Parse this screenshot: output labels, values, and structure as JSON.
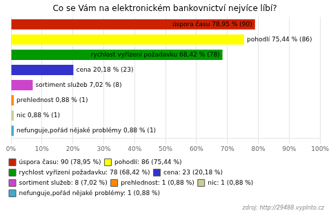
{
  "chart_data": {
    "type": "bar",
    "orientation": "horizontal",
    "title": "Co se Vám na elektronickém bankovnictví nejvíce líbí?",
    "categories": [
      "úspora času 78,95 % (90)",
      "pohodlí 75,44 % (86)",
      "rychlost vyřízení požadavku 68,42 % (78)",
      "cena 20,18 % (23)",
      "sortiment služeb 7,02 % (8)",
      "prehlednost 0,88 % (1)",
      "nic 0,88 % (1)",
      "nefunguje,pořád nějaké problémy 0,88 % (1)"
    ],
    "values": [
      78.95,
      75.44,
      68.42,
      20.18,
      7.02,
      0.88,
      0.88,
      0.88
    ],
    "colors": [
      "#cc2200",
      "#ffff00",
      "#009900",
      "#3333cc",
      "#cc44cc",
      "#ff8800",
      "#cccc99",
      "#44aacc"
    ],
    "xlim": [
      0,
      100
    ],
    "xticks": [
      {
        "value": 0,
        "label": "0%"
      },
      {
        "value": 10,
        "label": "10%"
      },
      {
        "value": 20,
        "label": "20%"
      },
      {
        "value": 30,
        "label": "30%"
      },
      {
        "value": 40,
        "label": "40%"
      },
      {
        "value": 50,
        "label": "50%"
      },
      {
        "value": 60,
        "label": "60%"
      },
      {
        "value": 70,
        "label": "70%"
      },
      {
        "value": 80,
        "label": "80%"
      },
      {
        "value": 90,
        "label": "90%"
      },
      {
        "value": 100,
        "label": "100%"
      }
    ],
    "grid": true,
    "tick_labels": "x",
    "legend": "bottom",
    "legend_labels": [
      "úspora času: 90 (78,95 %)",
      "pohodlí: 86 (75,44 %)",
      "rychlost vyřízení požadavku: 78 (68,42 %)",
      "cena: 23 (20,18 %)",
      "sortiment služeb: 8 (7,02 %)",
      "prehlednost: 1 (0,88 %)",
      "nic: 1 (0,88 %)",
      "nefunguje,pořád nějaké problémy: 1 (0,88 %)"
    ],
    "annotations": [
      "zdroj: http://29488.vyplnto.cz"
    ]
  }
}
